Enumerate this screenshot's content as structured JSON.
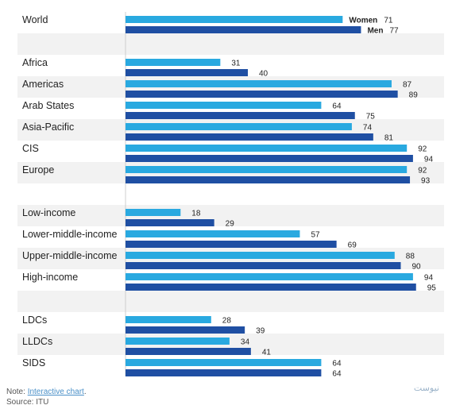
{
  "chart_data": {
    "type": "bar",
    "orientation": "horizontal",
    "xlim": [
      0,
      100
    ],
    "legend": "inline labels on first group",
    "series": [
      {
        "name": "Women",
        "color": "#29a9e0"
      },
      {
        "name": "Men",
        "color": "#1f4fa3"
      }
    ],
    "groups": [
      {
        "category": "World",
        "values": [
          71,
          77
        ]
      },
      null,
      {
        "category": "Africa",
        "values": [
          31,
          40
        ]
      },
      {
        "category": "Americas",
        "values": [
          87,
          89
        ]
      },
      {
        "category": "Arab States",
        "values": [
          64,
          75
        ]
      },
      {
        "category": "Asia-Pacific",
        "values": [
          74,
          81
        ]
      },
      {
        "category": "CIS",
        "values": [
          92,
          94
        ]
      },
      {
        "category": "Europe",
        "values": [
          92,
          93
        ]
      },
      null,
      {
        "category": "Low-income",
        "values": [
          18,
          29
        ]
      },
      {
        "category": "Lower-middle-income",
        "values": [
          57,
          69
        ]
      },
      {
        "category": "Upper-middle-income",
        "values": [
          88,
          90
        ]
      },
      {
        "category": "High-income",
        "values": [
          94,
          95
        ]
      },
      null,
      {
        "category": "LDCs",
        "values": [
          28,
          39
        ]
      },
      {
        "category": "LLDCs",
        "values": [
          34,
          41
        ]
      },
      {
        "category": "SIDS",
        "values": [
          64,
          64
        ]
      }
    ]
  },
  "footer": {
    "note_prefix": "Note: ",
    "note_link": "Interactive chart",
    "note_suffix": ".",
    "source": "Source: ITU"
  },
  "watermark": "نیوست"
}
